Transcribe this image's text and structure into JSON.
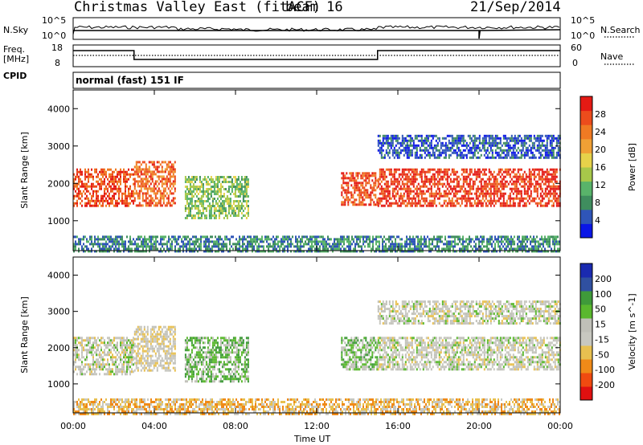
{
  "header": {
    "station": "Christmas Valley East (fitACF)",
    "beam": "beam 16",
    "date": "21/Sep/2014"
  },
  "top_panels": {
    "nsky_label": "N.Sky",
    "nsky_ticks": [
      "10^5",
      "10^0"
    ],
    "nsearch_label": "N.Search",
    "nsearch_ticks": [
      "10^5",
      "10^0"
    ],
    "freq_label_line1": "Freq.",
    "freq_label_line2": "[MHz]",
    "freq_ticks": [
      "18",
      "8"
    ],
    "nave_label": "Nave",
    "nave_ticks": [
      "60",
      "0"
    ],
    "cpid_label": "CPID",
    "cpid_text": "normal (fast) 151 IF"
  },
  "colors": {
    "power_scale": [
      "#0a16e6",
      "#2f55b8",
      "#3f8d5e",
      "#59b36a",
      "#a7c84a",
      "#e6d24a",
      "#f0a035",
      "#f07a23",
      "#ec4c1c",
      "#e41a14"
    ],
    "velocity_scale": [
      "#e01010",
      "#f04a10",
      "#f08a18",
      "#e8c050",
      "#c8c8c0",
      "#c0c0b8",
      "#5ab82e",
      "#3f9a3a",
      "#3050a0",
      "#1a2ab0"
    ]
  },
  "chart_data": [
    {
      "type": "heatmap",
      "name": "power",
      "ylabel": "Slant Range [km]",
      "colorbar_label": "Power [dB]",
      "colorbar_ticks": [
        "28",
        "24",
        "20",
        "16",
        "12",
        "8",
        "4"
      ],
      "y_ticks": [
        "4000",
        "3000",
        "2000",
        "1000"
      ],
      "ylim": [
        200,
        4500
      ],
      "xlim": [
        0,
        24
      ],
      "regions": [
        {
          "t0": 0.0,
          "t1": 3.0,
          "r0": 1400,
          "r1": 2400,
          "level": 0.85
        },
        {
          "t0": 3.0,
          "t1": 5.0,
          "r0": 1400,
          "r1": 2600,
          "level": 0.8
        },
        {
          "t0": 5.5,
          "t1": 8.6,
          "r0": 1100,
          "r1": 2200,
          "level": 0.4
        },
        {
          "t0": 13.2,
          "t1": 15.0,
          "r0": 1400,
          "r1": 2300,
          "level": 0.85
        },
        {
          "t0": 15.0,
          "t1": 24.0,
          "r0": 1400,
          "r1": 2400,
          "level": 0.9
        },
        {
          "t0": 15.0,
          "t1": 24.0,
          "r0": 2700,
          "r1": 3300,
          "level": 0.15
        },
        {
          "t0": 0.0,
          "t1": 24.0,
          "r0": 200,
          "r1": 600,
          "level": 0.25
        }
      ]
    },
    {
      "type": "heatmap",
      "name": "velocity",
      "ylabel": "Slant Range [km]",
      "xlabel": "Time UT",
      "colorbar_label": "Velocity [m s^-1]",
      "colorbar_ticks": [
        "200",
        "100",
        "50",
        "15",
        "-15",
        "-50",
        "-100",
        "-200"
      ],
      "x_ticks": [
        "00:00",
        "04:00",
        "08:00",
        "12:00",
        "16:00",
        "20:00",
        "00:00"
      ],
      "y_ticks": [
        "4000",
        "3000",
        "2000",
        "1000"
      ],
      "ylim": [
        200,
        4500
      ],
      "xlim": [
        0,
        24
      ],
      "regions": [
        {
          "t0": 0.0,
          "t1": 3.0,
          "r0": 1300,
          "r1": 2300,
          "level": 0.5
        },
        {
          "t0": 3.0,
          "t1": 5.0,
          "r0": 1400,
          "r1": 2600,
          "level": 0.45
        },
        {
          "t0": 5.5,
          "t1": 8.6,
          "r0": 1100,
          "r1": 2300,
          "level": 0.65
        },
        {
          "t0": 13.2,
          "t1": 15.0,
          "r0": 1400,
          "r1": 2300,
          "level": 0.62
        },
        {
          "t0": 15.0,
          "t1": 24.0,
          "r0": 1400,
          "r1": 2300,
          "level": 0.5
        },
        {
          "t0": 15.0,
          "t1": 24.0,
          "r0": 2700,
          "r1": 3300,
          "level": 0.5
        },
        {
          "t0": 0.0,
          "t1": 24.0,
          "r0": 200,
          "r1": 600,
          "level": 0.35
        }
      ]
    }
  ]
}
